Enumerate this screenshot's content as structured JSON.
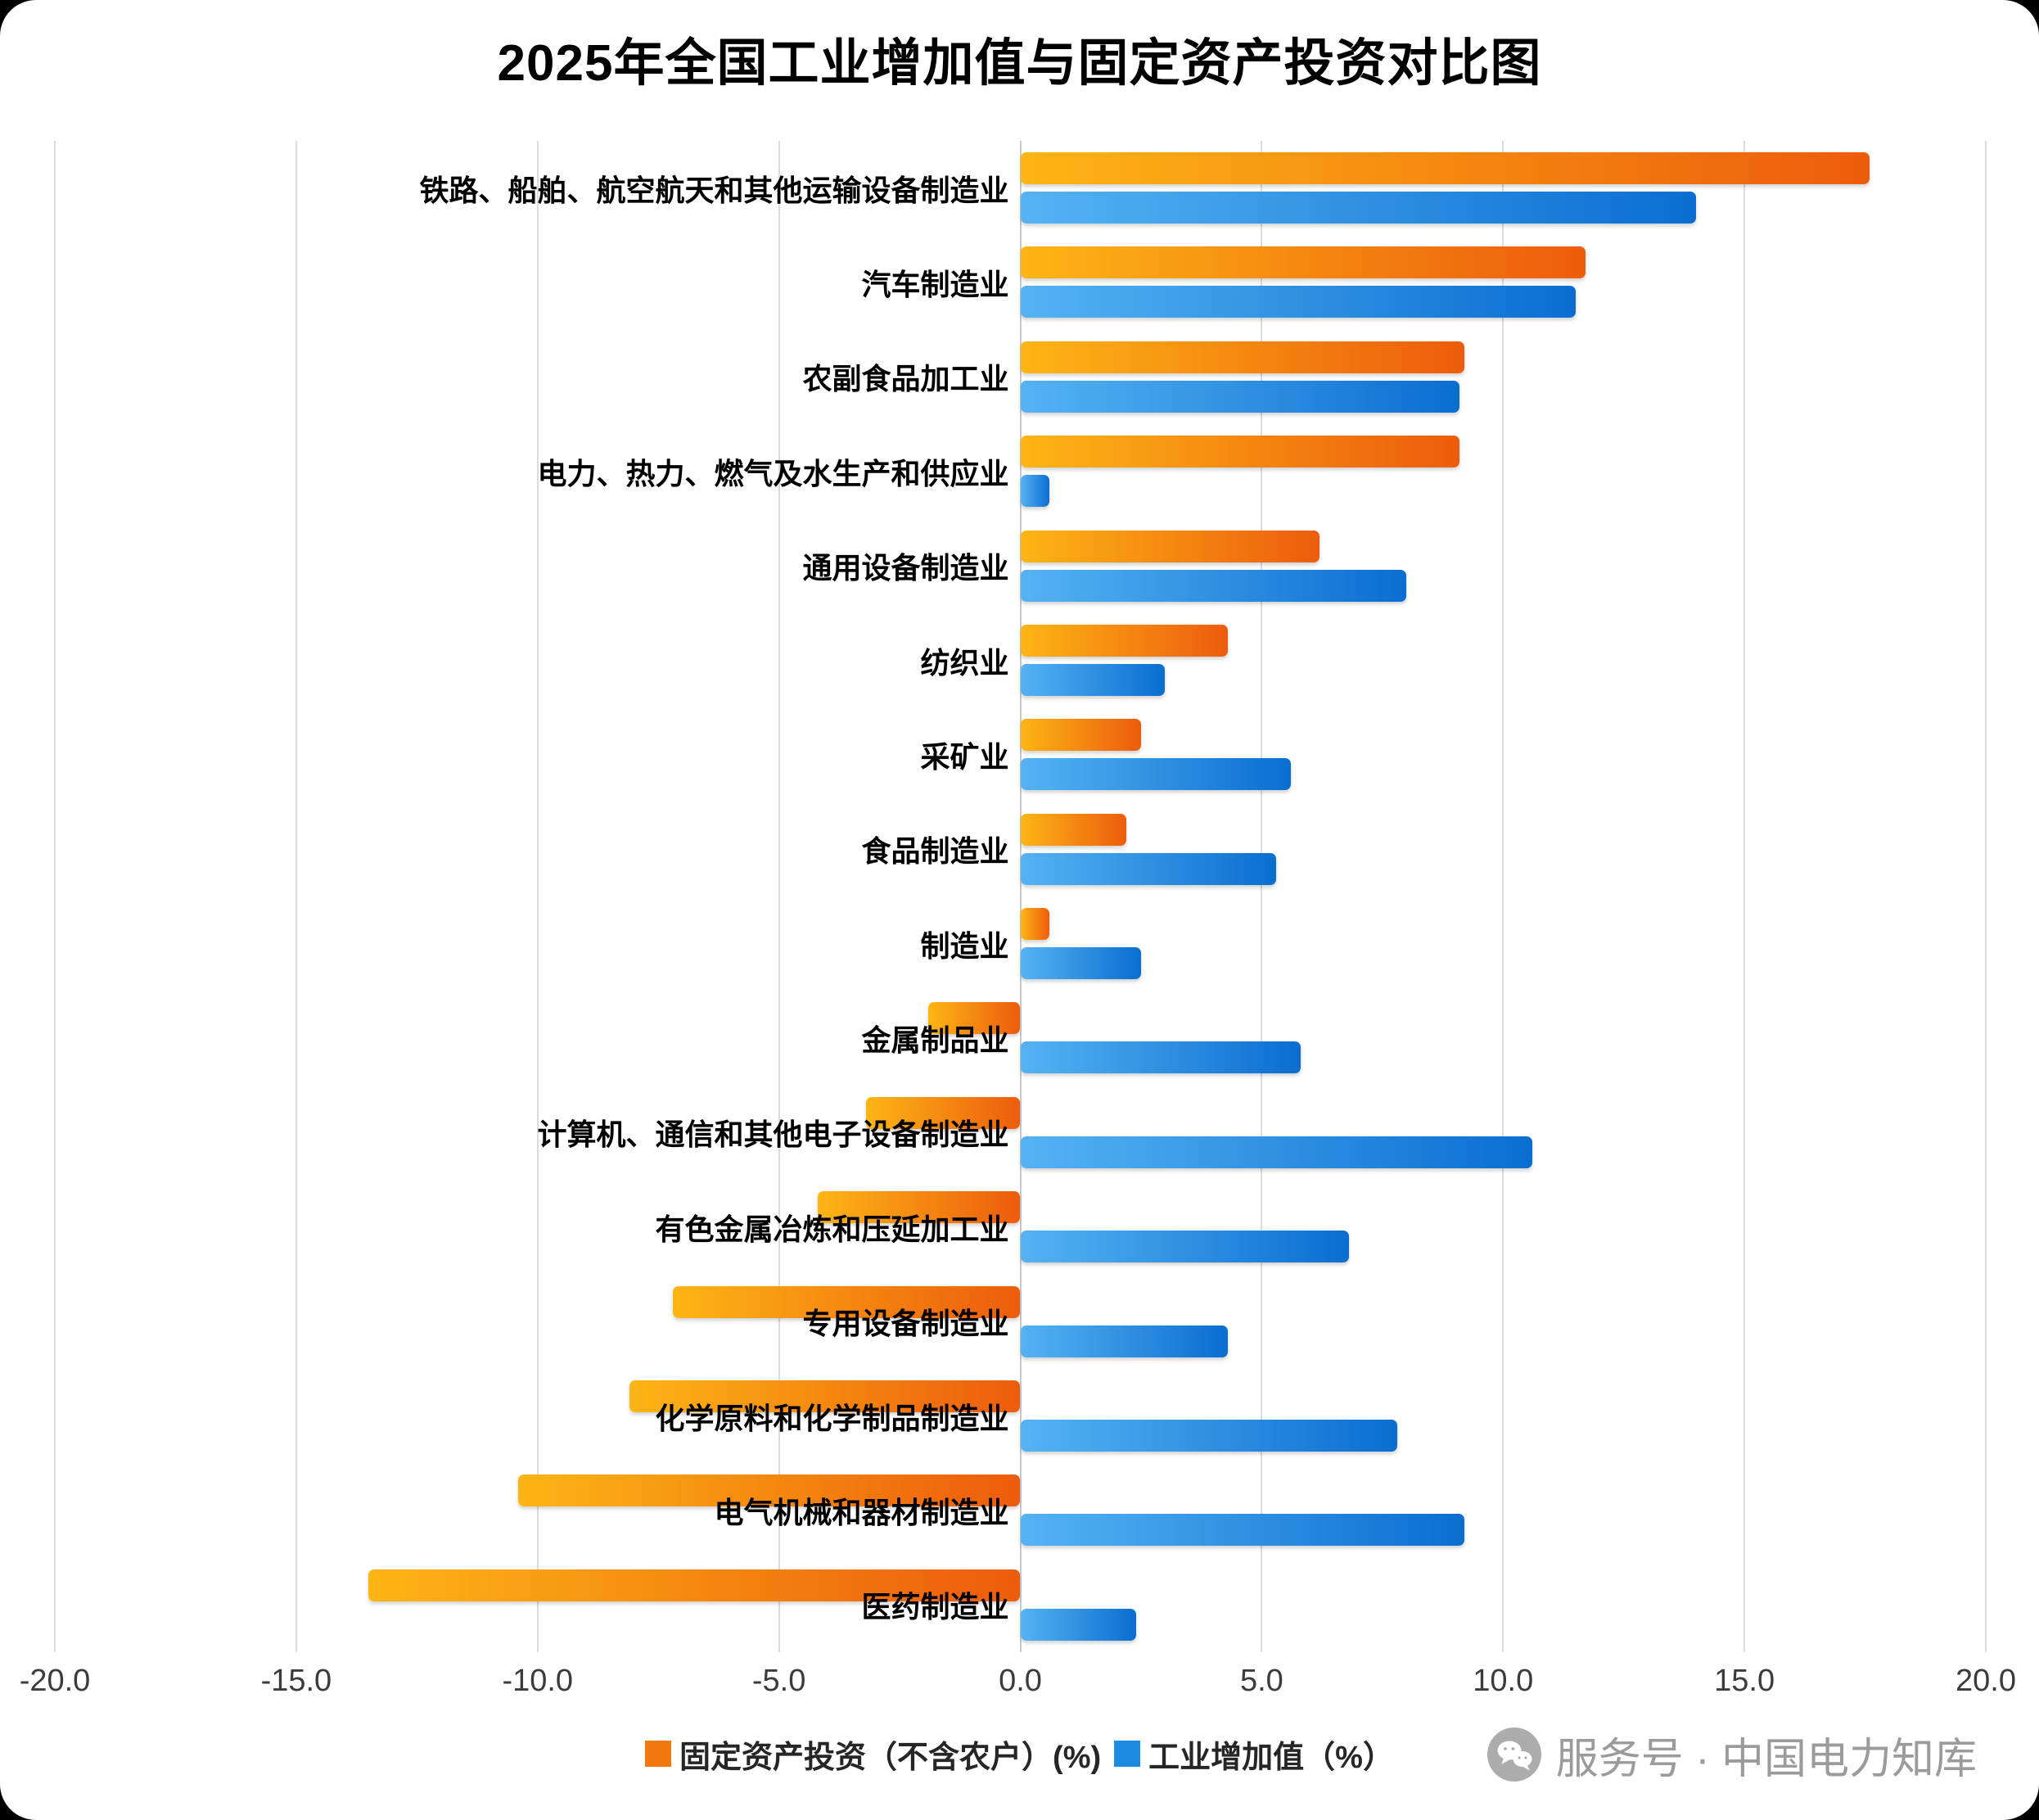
{
  "chart_data": {
    "type": "bar",
    "orientation": "horizontal",
    "title": "2025年全国工业增加值与固定资产投资对比图",
    "xlim": [
      -20,
      20
    ],
    "x_ticks": [
      -20,
      -15,
      -10,
      -5,
      0,
      5,
      10,
      15,
      20
    ],
    "x_tick_labels": [
      "-20.0",
      "-15.0",
      "-10.0",
      "-5.0",
      "0.0",
      "5.0",
      "10.0",
      "15.0",
      "20.0"
    ],
    "grid": true,
    "legend_position": "bottom",
    "categories": [
      "铁路、船舶、航空航天和其他运输设备制造业",
      "汽车制造业",
      "农副食品加工业",
      "电力、热力、燃气及水生产和供应业",
      "通用设备制造业",
      "纺织业",
      "采矿业",
      "食品制造业",
      "制造业",
      "金属制品业",
      "计算机、通信和其他电子设备制造业",
      "有色金属冶炼和压延加工业",
      "专用设备制造业",
      "化学原料和化学制品制造业",
      "电气机械和器材制造业",
      "医药制造业"
    ],
    "series": [
      {
        "name": "固定资产投资（不含农户）(%)",
        "legend_color": "#F0780F",
        "color_start": "#FDB515",
        "color_end": "#ED5C0C",
        "values": [
          17.6,
          11.7,
          9.2,
          9.1,
          6.2,
          4.3,
          2.5,
          2.2,
          0.6,
          -1.9,
          -3.2,
          -4.2,
          -7.2,
          -8.1,
          -10.4,
          -13.5
        ]
      },
      {
        "name": "工业增加值（%）",
        "legend_color": "#1C8BE0",
        "color_start": "#55B3F3",
        "color_end": "#0A6ED1",
        "values": [
          14.0,
          11.5,
          9.1,
          0.6,
          8.0,
          3.0,
          5.6,
          5.3,
          2.5,
          5.8,
          10.6,
          6.8,
          4.3,
          7.8,
          9.2,
          2.4
        ]
      }
    ]
  },
  "watermark": {
    "icon": "wechat-icon",
    "text": "服务号 · 中国电力知库"
  }
}
